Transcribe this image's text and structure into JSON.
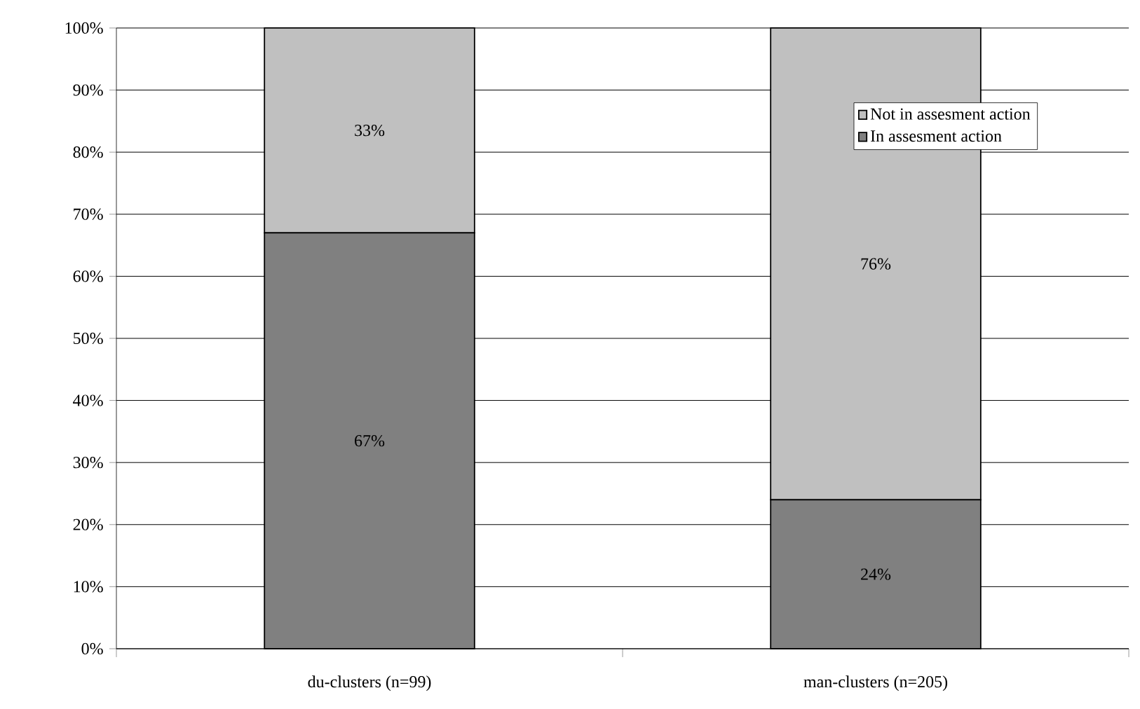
{
  "chart_data": {
    "type": "bar",
    "stacked": true,
    "categories": [
      "du-clusters (n=99)",
      "man-clusters (n=205)"
    ],
    "series": [
      {
        "name": "In assesment action",
        "color": "#808080",
        "values": [
          67,
          24
        ],
        "value_labels": [
          "67%",
          "24%"
        ]
      },
      {
        "name": "Not in assesment action",
        "color": "#c0c0c0",
        "values": [
          33,
          76
        ],
        "value_labels": [
          "33%",
          "76%"
        ]
      }
    ],
    "ylim": [
      0,
      100
    ],
    "yticks": [
      {
        "value": 0,
        "label": "0%"
      },
      {
        "value": 10,
        "label": "10%"
      },
      {
        "value": 20,
        "label": "20%"
      },
      {
        "value": 30,
        "label": "30%"
      },
      {
        "value": 40,
        "label": "40%"
      },
      {
        "value": 50,
        "label": "50%"
      },
      {
        "value": 60,
        "label": "60%"
      },
      {
        "value": 70,
        "label": "70%"
      },
      {
        "value": 80,
        "label": "80%"
      },
      {
        "value": 90,
        "label": "90%"
      },
      {
        "value": 100,
        "label": "100%"
      }
    ],
    "grid": "y",
    "legend": "top right"
  }
}
